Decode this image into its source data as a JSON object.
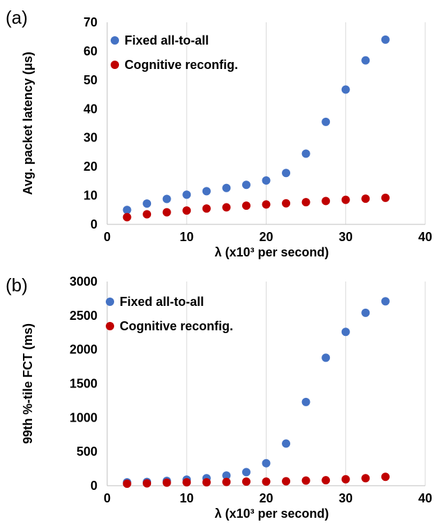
{
  "chart_data": [
    {
      "type": "scatter",
      "panel_label": "(a)",
      "xlabel": "λ (x10³ per second)",
      "ylabel": "Avg. packet latency (μs)",
      "xlim": [
        0,
        40
      ],
      "ylim": [
        0,
        70
      ],
      "xticks": [
        0,
        10,
        20,
        30,
        40
      ],
      "yticks": [
        0,
        10,
        20,
        30,
        40,
        50,
        60,
        70
      ],
      "grid": "vertical",
      "legend": "top-left",
      "x": [
        2.5,
        5,
        7.5,
        10,
        12.5,
        15,
        17.5,
        20,
        22.5,
        25,
        27.5,
        30,
        32.5,
        35
      ],
      "series": [
        {
          "name": "Fixed all-to-all",
          "color": "#4472c4",
          "values": [
            5.0,
            7.2,
            8.8,
            10.3,
            11.5,
            12.6,
            13.7,
            15.2,
            17.8,
            24.5,
            35.5,
            46.7,
            56.8,
            64.0
          ]
        },
        {
          "name": "Cognitive reconfig.",
          "color": "#c00000",
          "values": [
            2.5,
            3.5,
            4.2,
            4.8,
            5.5,
            5.9,
            6.5,
            6.9,
            7.3,
            7.7,
            8.1,
            8.5,
            8.9,
            9.2
          ]
        }
      ]
    },
    {
      "type": "scatter",
      "panel_label": "(b)",
      "xlabel": "λ (x10³ per second)",
      "ylabel": "99th %-tile FCT (ms)",
      "xlim": [
        0,
        40
      ],
      "ylim": [
        0,
        3000
      ],
      "xticks": [
        0,
        10,
        20,
        30,
        40
      ],
      "yticks": [
        0,
        500,
        1000,
        1500,
        2000,
        2500,
        3000
      ],
      "grid": "vertical",
      "legend": "top-left",
      "x": [
        2.5,
        5,
        7.5,
        10,
        12.5,
        15,
        17.5,
        20,
        22.5,
        25,
        27.5,
        30,
        32.5,
        35
      ],
      "series": [
        {
          "name": "Fixed all-to-all",
          "color": "#4472c4",
          "values": [
            50,
            55,
            70,
            90,
            110,
            150,
            200,
            330,
            620,
            1230,
            1880,
            2260,
            2540,
            2710
          ]
        },
        {
          "name": "Cognitive reconfig.",
          "color": "#c00000",
          "values": [
            30,
            35,
            45,
            50,
            50,
            55,
            60,
            60,
            65,
            75,
            80,
            95,
            110,
            130
          ]
        }
      ]
    }
  ]
}
